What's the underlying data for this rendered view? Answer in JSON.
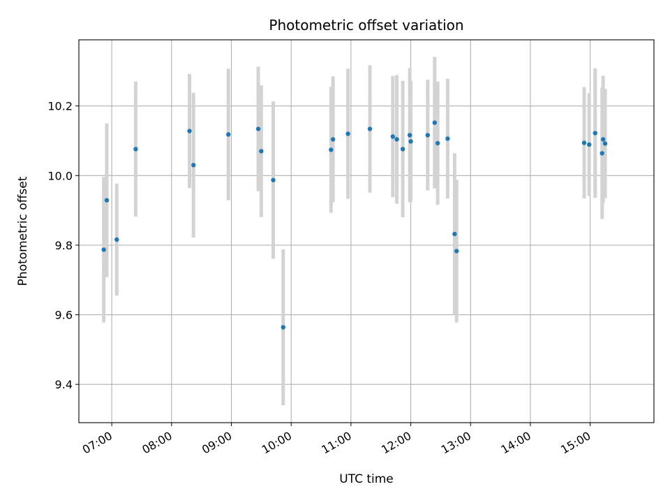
{
  "chart_data": {
    "type": "scatter",
    "title": "Photometric offset variation",
    "xlabel": "UTC time",
    "ylabel": "Photometric offset",
    "xlim": [
      "06:27",
      "16:04"
    ],
    "ylim": [
      9.29,
      10.39
    ],
    "x_ticks": [
      "07:00",
      "08:00",
      "09:00",
      "10:00",
      "11:00",
      "12:00",
      "13:00",
      "14:00",
      "15:00"
    ],
    "y_ticks": [
      9.4,
      9.6,
      9.8,
      10.0,
      10.2
    ],
    "grid": true,
    "colors": {
      "point": "#1f77b4",
      "errorbar": "#d3d3d3"
    },
    "series": [
      {
        "points": [
          {
            "x": "06:52",
            "y": 9.787,
            "yerr": 0.209
          },
          {
            "x": "06:55",
            "y": 9.929,
            "yerr": 0.221
          },
          {
            "x": "07:05",
            "y": 9.816,
            "yerr": 0.161
          },
          {
            "x": "07:24",
            "y": 10.076,
            "yerr": 0.194
          },
          {
            "x": "08:18",
            "y": 10.128,
            "yerr": 0.164
          },
          {
            "x": "08:22",
            "y": 10.03,
            "yerr": 0.208
          },
          {
            "x": "08:57",
            "y": 10.118,
            "yerr": 0.189
          },
          {
            "x": "09:27",
            "y": 10.134,
            "yerr": 0.179
          },
          {
            "x": "09:30",
            "y": 10.07,
            "yerr": 0.189
          },
          {
            "x": "09:42",
            "y": 9.987,
            "yerr": 0.226
          },
          {
            "x": "09:52",
            "y": 9.564,
            "yerr": 0.224
          },
          {
            "x": "10:40",
            "y": 10.074,
            "yerr": 0.181
          },
          {
            "x": "10:42",
            "y": 10.104,
            "yerr": 0.181
          },
          {
            "x": "10:57",
            "y": 10.12,
            "yerr": 0.187
          },
          {
            "x": "11:19",
            "y": 10.134,
            "yerr": 0.183
          },
          {
            "x": "11:42",
            "y": 10.112,
            "yerr": 0.174
          },
          {
            "x": "11:46",
            "y": 10.104,
            "yerr": 0.185
          },
          {
            "x": "11:52",
            "y": 10.076,
            "yerr": 0.196
          },
          {
            "x": "11:59",
            "y": 10.116,
            "yerr": 0.193
          },
          {
            "x": "12:00",
            "y": 10.098,
            "yerr": 0.174
          },
          {
            "x": "12:17",
            "y": 10.116,
            "yerr": 0.159
          },
          {
            "x": "12:24",
            "y": 10.152,
            "yerr": 0.189
          },
          {
            "x": "12:27",
            "y": 10.093,
            "yerr": 0.177
          },
          {
            "x": "12:37",
            "y": 10.106,
            "yerr": 0.172
          },
          {
            "x": "12:44",
            "y": 9.832,
            "yerr": 0.232
          },
          {
            "x": "12:46",
            "y": 9.783,
            "yerr": 0.205
          },
          {
            "x": "14:54",
            "y": 10.094,
            "yerr": 0.16
          },
          {
            "x": "14:59",
            "y": 10.089,
            "yerr": 0.148
          },
          {
            "x": "15:05",
            "y": 10.122,
            "yerr": 0.186
          },
          {
            "x": "15:12",
            "y": 10.064,
            "yerr": 0.189
          },
          {
            "x": "15:13",
            "y": 10.104,
            "yerr": 0.183
          },
          {
            "x": "15:15",
            "y": 10.092,
            "yerr": 0.157
          }
        ]
      }
    ]
  }
}
